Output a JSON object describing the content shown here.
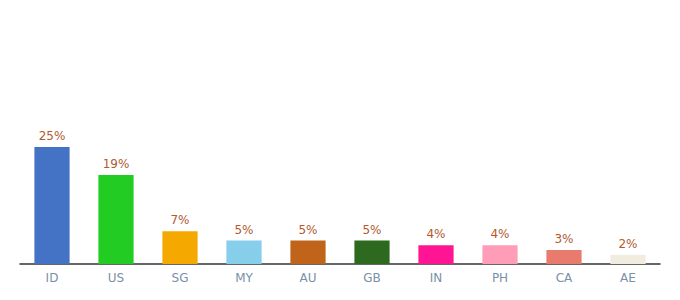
{
  "chart_data": {
    "type": "bar",
    "categories": [
      "ID",
      "US",
      "SG",
      "MY",
      "AU",
      "GB",
      "IN",
      "PH",
      "CA",
      "AE"
    ],
    "values": [
      25,
      19,
      7,
      5,
      5,
      5,
      4,
      4,
      3,
      2
    ],
    "value_labels": [
      "25%",
      "19%",
      "7%",
      "5%",
      "5%",
      "5%",
      "4%",
      "4%",
      "3%",
      "2%"
    ],
    "colors": [
      "#4472c4",
      "#22cc22",
      "#f5a800",
      "#87ceeb",
      "#c0641a",
      "#2d6a1f",
      "#ff1493",
      "#ff9db8",
      "#e87b6e",
      "#f0ede0"
    ],
    "ylim": [
      0,
      50
    ],
    "data_labels": true,
    "tick_labels": "x",
    "grid": false
  }
}
